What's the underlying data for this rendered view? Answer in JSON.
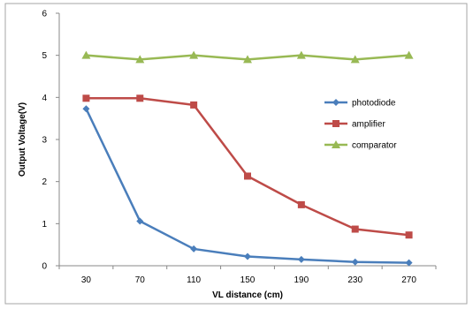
{
  "chart_data": {
    "type": "line",
    "x": [
      30,
      70,
      110,
      150,
      190,
      230,
      270
    ],
    "categories": [
      "30",
      "70",
      "110",
      "150",
      "190",
      "230",
      "270"
    ],
    "series": [
      {
        "name": "photodiode",
        "values": [
          3.73,
          1.06,
          0.4,
          0.22,
          0.15,
          0.09,
          0.07
        ],
        "color": "#4A7EBB",
        "marker": "diamond"
      },
      {
        "name": "amplifier",
        "values": [
          3.98,
          3.98,
          3.82,
          2.13,
          1.45,
          0.87,
          0.73
        ],
        "color": "#BE4B48",
        "marker": "square"
      },
      {
        "name": "comparator",
        "values": [
          5.0,
          4.9,
          5.0,
          4.9,
          5.0,
          4.9,
          5.0
        ],
        "color": "#98B954",
        "marker": "triangle"
      }
    ],
    "title": "",
    "xlabel": "VL distance (cm)",
    "ylabel": "Output  Voltage(V)",
    "ylim": [
      0,
      6
    ],
    "yticks": [
      0,
      1,
      2,
      3,
      4,
      5,
      6
    ],
    "grid": false,
    "legend_position": "right"
  }
}
